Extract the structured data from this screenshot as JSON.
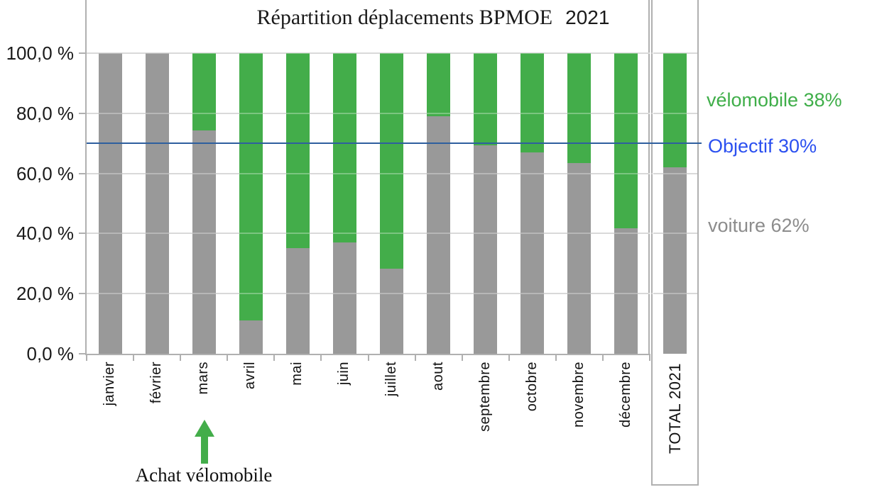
{
  "title": {
    "main": "Répartition déplacements BPMOE",
    "year": "2021"
  },
  "y_axis": {
    "tick_labels": [
      "100,0 %",
      "80,0 %",
      "60,0 %",
      "40,0 %",
      "20,0 %",
      "0,0 %"
    ]
  },
  "legend": {
    "velomobile": {
      "label": "vélomobile 38%",
      "color": "#3fae49"
    },
    "objectif": {
      "label": "Objectif 30%",
      "color": "#2b50f0"
    },
    "voiture": {
      "label": "voiture 62%",
      "color": "#8c8c8c"
    }
  },
  "annotation": {
    "label": "Achat vélomobile",
    "arrow_color": "#43ad4a"
  },
  "chart_data": {
    "type": "bar",
    "stacked": true,
    "unit": "%",
    "title": "Répartition déplacements BPMOE 2021",
    "categories": [
      "janvier",
      "février",
      "mars",
      "avril",
      "mai",
      "juin",
      "juillet",
      "aout",
      "septembre",
      "octobre",
      "novembre",
      "décembre",
      "TOTAL 2021"
    ],
    "series": [
      {
        "name": "voiture",
        "color": "#999999",
        "values": [
          100,
          100,
          74.4,
          11.2,
          35.2,
          37,
          28.3,
          79,
          69.3,
          67,
          63.5,
          41.7,
          62
        ]
      },
      {
        "name": "vélomobile",
        "color": "#43ad4a",
        "values": [
          0,
          0,
          25.6,
          88.8,
          64.8,
          63,
          71.7,
          21,
          30.7,
          33,
          36.5,
          58.3,
          38
        ]
      }
    ],
    "reference_line": {
      "label": "Objectif 30%",
      "value": 70,
      "color": "#2e5f9e"
    },
    "ylim": [
      0,
      100
    ],
    "y_ticks": [
      100,
      80,
      60,
      40,
      20,
      0
    ],
    "grid": true,
    "legend_position": "right",
    "annotations": [
      {
        "text": "Achat vélomobile",
        "category": "mars"
      }
    ]
  }
}
